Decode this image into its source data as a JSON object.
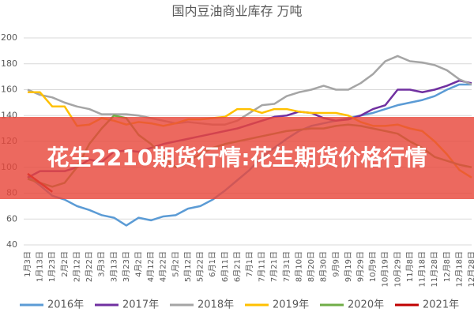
{
  "chart_data": {
    "type": "line",
    "title": "国内豆油商业库存    万吨",
    "categories": [
      "1月3日",
      "1月13日",
      "1月23日",
      "2月2日",
      "2月12日",
      "2月22日",
      "3月3日",
      "3月13日",
      "3月23日",
      "4月2日",
      "4月12日",
      "4月22日",
      "5月2日",
      "5月12日",
      "5月22日",
      "6月1日",
      "6月11日",
      "6月21日",
      "7月1日",
      "7月11日",
      "7月21日",
      "7月31日",
      "8月10日",
      "8月20日",
      "8月30日",
      "9月9日",
      "9月19日",
      "9月29日",
      "10月9日",
      "10月19日",
      "10月29日",
      "11月8日",
      "11月18日",
      "11月28日",
      "12月8日",
      "12月18日",
      "12月28日"
    ],
    "series": [
      {
        "name": "2016年",
        "color": "#5b9bd5",
        "values": [
          93,
          86,
          78,
          75,
          70,
          67,
          63,
          61,
          55,
          61,
          59,
          62,
          63,
          68,
          70,
          75,
          82,
          90,
          98,
          108,
          115,
          122,
          128,
          132,
          134,
          136,
          138,
          140,
          142,
          145,
          148,
          150,
          152,
          155,
          160,
          164,
          164
        ]
      },
      {
        "name": "2017年",
        "color": "#7030a0",
        "values": [
          92,
          97,
          97,
          97,
          100,
          106,
          104,
          112,
          113,
          112,
          115,
          118,
          120,
          122,
          124,
          126,
          128,
          130,
          133,
          136,
          139,
          140,
          143,
          142,
          138,
          136,
          137,
          140,
          145,
          148,
          160,
          160,
          158,
          160,
          163,
          167,
          165
        ]
      },
      {
        "name": "2018年",
        "color": "#a5a5a5",
        "values": [
          160,
          156,
          154,
          150,
          147,
          145,
          141,
          141,
          141,
          140,
          138,
          136,
          134,
          135,
          134,
          133,
          133,
          136,
          142,
          148,
          149,
          155,
          158,
          160,
          163,
          160,
          160,
          165,
          172,
          182,
          186,
          182,
          181,
          179,
          175,
          168,
          164
        ]
      },
      {
        "name": "2019年",
        "color": "#ffc000",
        "values": [
          158,
          158,
          147,
          147,
          132,
          133,
          138,
          136,
          133,
          135,
          134,
          132,
          134,
          137,
          137,
          138,
          139,
          145,
          145,
          142,
          145,
          145,
          143,
          142,
          142,
          142,
          140,
          135,
          132,
          132,
          133,
          130,
          128,
          120,
          110,
          98,
          92
        ]
      },
      {
        "name": "2020年",
        "color": "#70ad47",
        "values": [
          91,
          88,
          85,
          88,
          100,
          118,
          130,
          140,
          138,
          125,
          118,
          108,
          100,
          105,
          110,
          115,
          118,
          120,
          122,
          124,
          126,
          128,
          129,
          130,
          130,
          132,
          133,
          132,
          130,
          128,
          126,
          120,
          115,
          108,
          105,
          102,
          100
        ]
      },
      {
        "name": "2021年",
        "color": "#c00000",
        "values": [
          95,
          88,
          81,
          null,
          null,
          null,
          null,
          null,
          null,
          null,
          null,
          null,
          null,
          null,
          null,
          null,
          null,
          null,
          null,
          null,
          null,
          null,
          null,
          null,
          null,
          null,
          null,
          null,
          null,
          null,
          null,
          null,
          null,
          null,
          null,
          null,
          null
        ]
      }
    ],
    "ylim": [
      40,
      200
    ],
    "yticks": [
      40,
      60,
      80,
      100,
      120,
      140,
      160,
      180,
      200
    ],
    "grid": true,
    "legend": "bottom"
  },
  "overlay_text": "花生2210期货行情:花生期货价格行情"
}
